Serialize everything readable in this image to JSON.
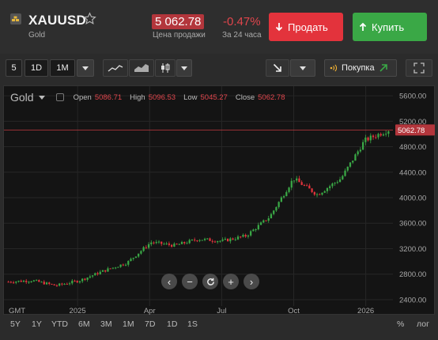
{
  "header": {
    "symbol": "XAUUSD",
    "name": "Gold",
    "price": "5 062.78",
    "price_label": "Цена продажи",
    "change": "-0.47%",
    "change_label": "За 24 часа",
    "sell_label": "Продать",
    "buy_label": "Купить",
    "colors": {
      "sell": "#e3333c",
      "buy": "#3aa846",
      "price_bg": "#b3363c"
    }
  },
  "toolbar": {
    "interval_value": "5",
    "interval_options": [
      "1D",
      "1M"
    ],
    "order_label": "Покупка"
  },
  "chart": {
    "title": "Gold",
    "ohlc": {
      "open_label": "Open",
      "open": "5086.71",
      "high_label": "High",
      "high": "5096.53",
      "low_label": "Low",
      "low": "5045.27",
      "close_label": "Close",
      "close": "5062.78"
    },
    "current_price_tag": "5062.78",
    "timezone": "GMT",
    "y_ticks": [
      "5600.00",
      "5200.00",
      "4800.00",
      "4400.00",
      "4000.00",
      "3600.00",
      "3200.00",
      "2800.00",
      "2400.00"
    ],
    "x_ticks": [
      "2025",
      "Apr",
      "Jul",
      "Oct",
      "2026"
    ]
  },
  "chart_data": {
    "type": "line",
    "title": "Gold",
    "xlabel": "",
    "ylabel": "",
    "ylim": [
      2300,
      5750
    ],
    "x": [
      "2024-10",
      "2024-11",
      "2024-12",
      "2025-01",
      "2025-02",
      "2025-03",
      "2025-04",
      "2025-05",
      "2025-06",
      "2025-07",
      "2025-08",
      "2025-09",
      "2025-10",
      "2025-11",
      "2025-12",
      "2026-01",
      "2026-02"
    ],
    "series": [
      {
        "values": [
          2680,
          2700,
          2620,
          2700,
          2850,
          2980,
          3300,
          3250,
          3350,
          3320,
          3400,
          3700,
          4300,
          4050,
          4300,
          4900,
          5062.78
        ]
      }
    ]
  },
  "ranges": [
    "5Y",
    "1Y",
    "YTD",
    "6M",
    "3M",
    "1M",
    "7D",
    "1D",
    "1S"
  ],
  "scale_options": {
    "percent": "%",
    "log": "лог"
  }
}
